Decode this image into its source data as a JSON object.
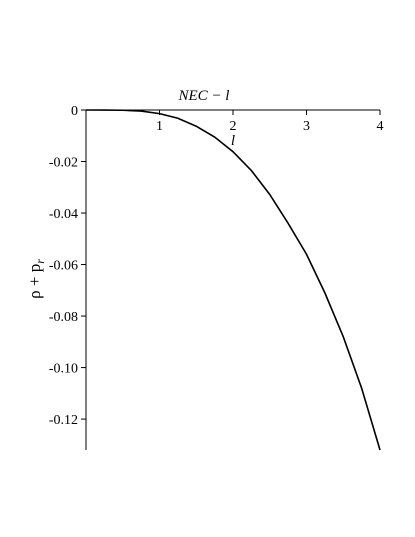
{
  "chart_data": {
    "type": "line",
    "title": "NEC − l",
    "xlabel": "l",
    "ylabel": "ρ + p",
    "ylabel_sub": "r",
    "xlim": [
      0,
      4
    ],
    "ylim": [
      -0.132,
      0
    ],
    "x_ticks": [
      1,
      2,
      3,
      4
    ],
    "x_tick_labels": [
      "1",
      "2",
      "3",
      "4"
    ],
    "y_ticks": [
      0,
      -0.02,
      -0.04,
      -0.06,
      -0.08,
      -0.1,
      -0.12
    ],
    "y_tick_labels": [
      "0",
      "-0.02",
      "-0.04",
      "-0.06",
      "-0.08",
      "-0.10",
      "-0.12"
    ],
    "grid": false,
    "series": [
      {
        "x": [
          0,
          0.25,
          0.5,
          0.75,
          1,
          1.25,
          1.5,
          1.75,
          2,
          2.25,
          2.5,
          2.75,
          3,
          3.25,
          3.5,
          3.75,
          4
        ],
        "y": [
          0,
          -1e-05,
          -0.0001,
          -0.0004,
          -0.0014,
          -0.0032,
          -0.0063,
          -0.0105,
          -0.0162,
          -0.0235,
          -0.0328,
          -0.044,
          -0.056,
          -0.071,
          -0.088,
          -0.108,
          -0.132
        ]
      }
    ]
  }
}
